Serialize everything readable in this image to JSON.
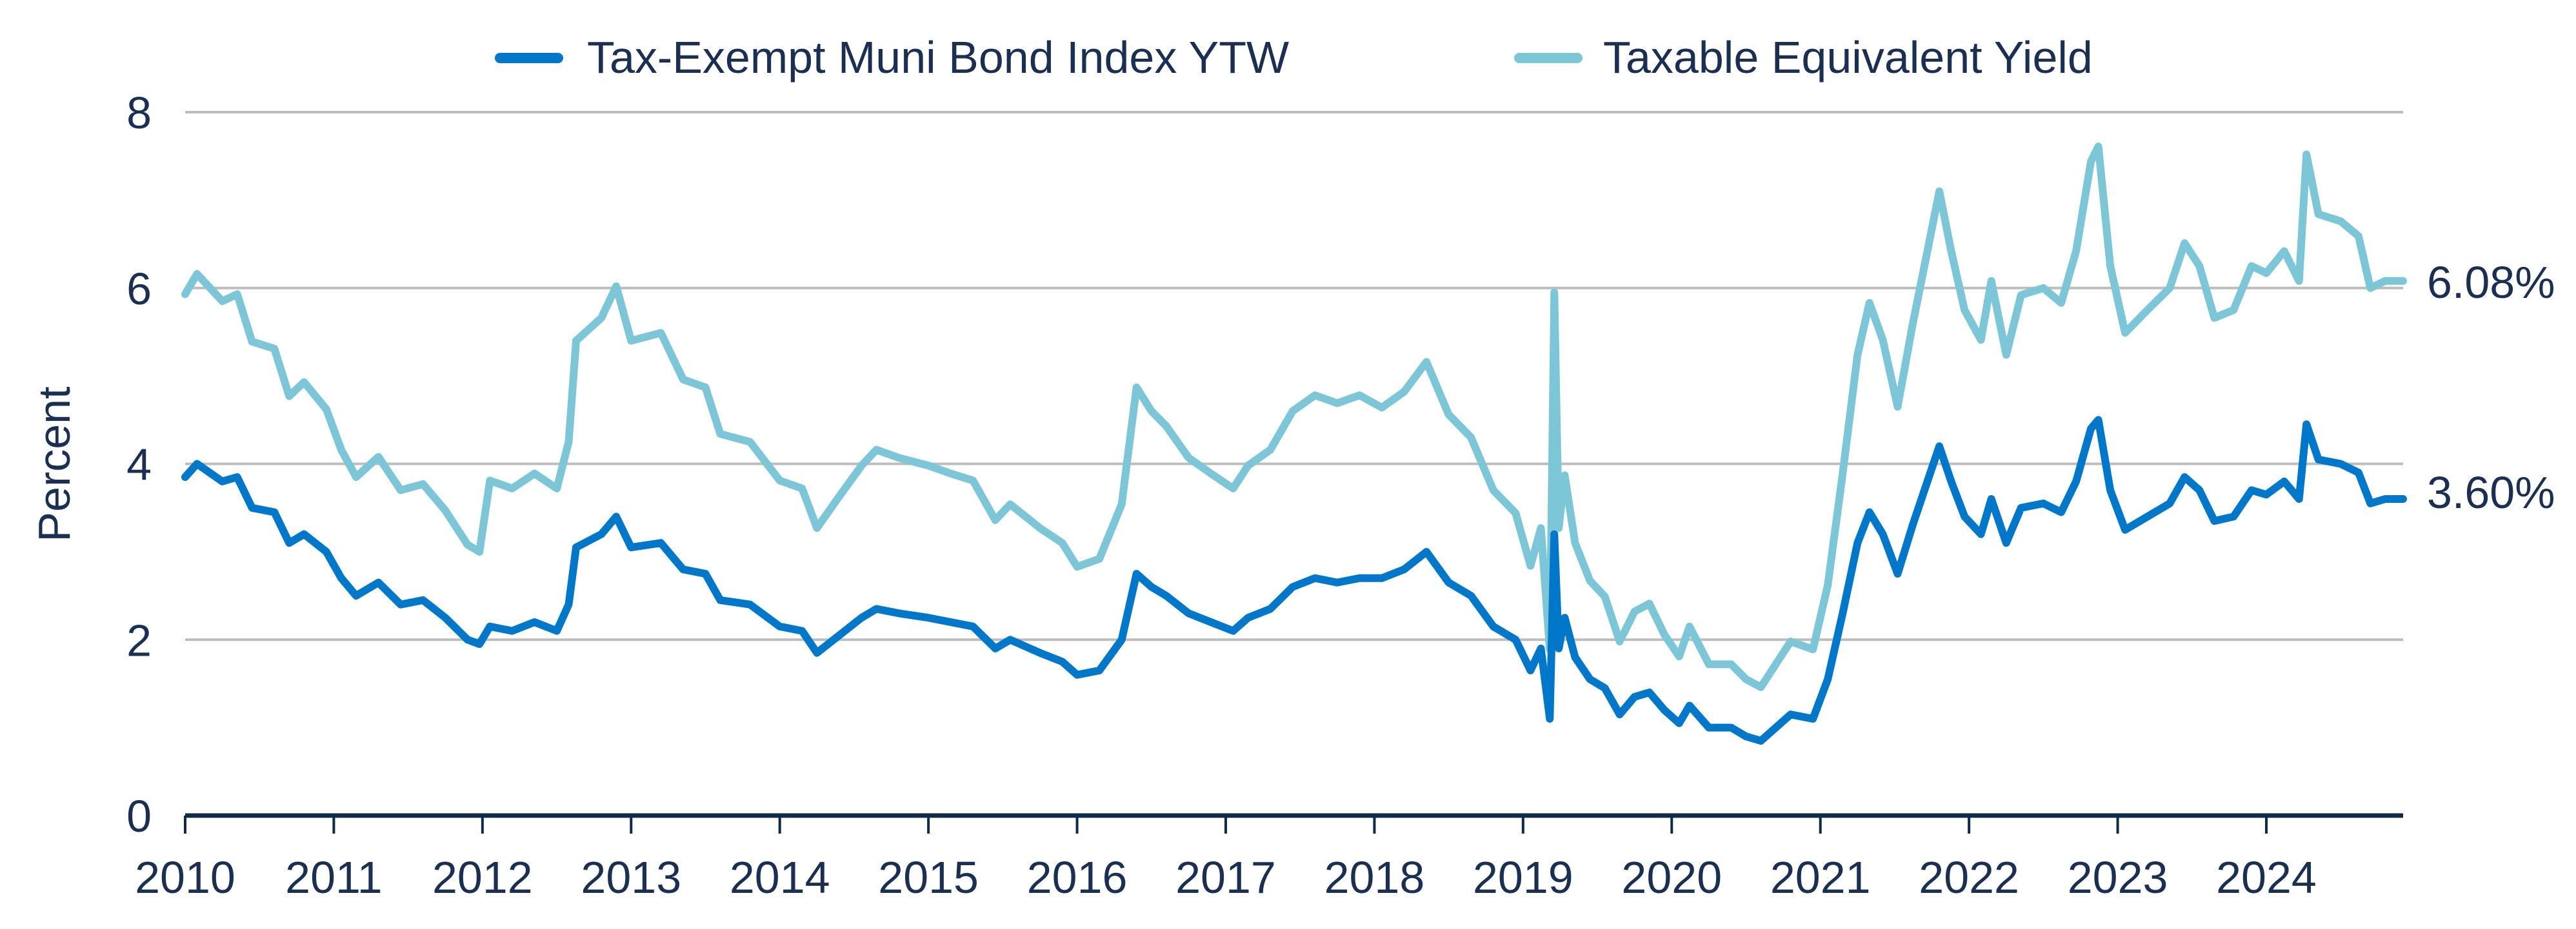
{
  "chart_data": {
    "type": "line",
    "title": "",
    "xlabel": "",
    "ylabel": "Percent",
    "xlim": [
      2010,
      2024.92
    ],
    "ylim": [
      0,
      8
    ],
    "yticks": [
      0,
      2,
      4,
      6,
      8
    ],
    "xticks": [
      2010,
      2011,
      2012,
      2013,
      2014,
      2015,
      2016,
      2017,
      2018,
      2019,
      2020,
      2021,
      2022,
      2023,
      2024
    ],
    "grid": "horizontal",
    "legend_position": "top",
    "colors": {
      "muni": "#0077C8",
      "tey": "#7DC6D8",
      "text": "#1B2F52",
      "axis": "#0E2A4A",
      "grid": "#BDBDBD"
    },
    "x": [
      2010.0,
      2010.08,
      2010.25,
      2010.35,
      2010.45,
      2010.6,
      2010.7,
      2010.8,
      2010.95,
      2011.05,
      2011.15,
      2011.3,
      2011.45,
      2011.6,
      2011.75,
      2011.9,
      2011.98,
      2012.05,
      2012.2,
      2012.35,
      2012.5,
      2012.58,
      2012.63,
      2012.8,
      2012.9,
      2013.0,
      2013.2,
      2013.35,
      2013.5,
      2013.6,
      2013.8,
      2014.0,
      2014.15,
      2014.25,
      2014.4,
      2014.55,
      2014.65,
      2014.8,
      2015.0,
      2015.15,
      2015.3,
      2015.45,
      2015.55,
      2015.75,
      2015.9,
      2016.0,
      2016.15,
      2016.3,
      2016.4,
      2016.5,
      2016.6,
      2016.75,
      2016.9,
      2017.05,
      2017.15,
      2017.3,
      2017.45,
      2017.6,
      2017.75,
      2017.9,
      2018.05,
      2018.2,
      2018.35,
      2018.5,
      2018.65,
      2018.8,
      2018.95,
      2019.05,
      2019.12,
      2019.18,
      2019.21,
      2019.24,
      2019.28,
      2019.35,
      2019.45,
      2019.55,
      2019.65,
      2019.75,
      2019.85,
      2019.95,
      2020.05,
      2020.12,
      2020.25,
      2020.4,
      2020.5,
      2020.6,
      2020.7,
      2020.8,
      2020.95,
      2021.05,
      2021.15,
      2021.25,
      2021.33,
      2021.42,
      2021.52,
      2021.62,
      2021.72,
      2021.8,
      2021.88,
      2021.97,
      2022.08,
      2022.15,
      2022.25,
      2022.35,
      2022.5,
      2022.62,
      2022.72,
      2022.82,
      2022.87,
      2022.95,
      2023.05,
      2023.2,
      2023.35,
      2023.45,
      2023.55,
      2023.65,
      2023.78,
      2023.9,
      2024.0,
      2024.12,
      2024.22,
      2024.27,
      2024.35,
      2024.5,
      2024.62,
      2024.7,
      2024.8,
      2024.92
    ],
    "series": [
      {
        "name": "Tax-Exempt Muni Bond Index YTW",
        "end_label": "3.60%",
        "values": [
          3.85,
          4.0,
          3.8,
          3.85,
          3.5,
          3.45,
          3.1,
          3.2,
          3.0,
          2.7,
          2.5,
          2.65,
          2.4,
          2.45,
          2.25,
          2.0,
          1.95,
          2.15,
          2.1,
          2.2,
          2.1,
          2.4,
          3.05,
          3.2,
          3.4,
          3.05,
          3.1,
          2.8,
          2.75,
          2.45,
          2.4,
          2.15,
          2.1,
          1.85,
          2.05,
          2.25,
          2.35,
          2.3,
          2.25,
          2.2,
          2.15,
          1.9,
          2.0,
          1.85,
          1.75,
          1.6,
          1.65,
          2.0,
          2.75,
          2.6,
          2.5,
          2.3,
          2.2,
          2.1,
          2.25,
          2.35,
          2.6,
          2.7,
          2.65,
          2.7,
          2.7,
          2.8,
          3.0,
          2.65,
          2.5,
          2.15,
          2.0,
          1.65,
          1.9,
          1.1,
          3.2,
          1.9,
          2.25,
          1.8,
          1.55,
          1.45,
          1.15,
          1.35,
          1.4,
          1.2,
          1.05,
          1.25,
          1.0,
          1.0,
          0.9,
          0.85,
          1.0,
          1.15,
          1.1,
          1.55,
          2.3,
          3.1,
          3.45,
          3.2,
          2.75,
          3.3,
          3.8,
          4.2,
          3.8,
          3.4,
          3.2,
          3.6,
          3.1,
          3.5,
          3.55,
          3.45,
          3.8,
          4.4,
          4.5,
          3.7,
          3.25,
          3.4,
          3.55,
          3.85,
          3.7,
          3.35,
          3.4,
          3.7,
          3.65,
          3.8,
          3.6,
          4.45,
          4.05,
          4.0,
          3.9,
          3.55,
          3.6,
          3.6
        ]
      },
      {
        "name": "Taxable Equivalent Yield",
        "end_label": "6.08%",
        "values": [
          5.93,
          6.16,
          5.85,
          5.93,
          5.39,
          5.31,
          4.77,
          4.93,
          4.62,
          4.16,
          3.85,
          4.08,
          3.7,
          3.77,
          3.47,
          3.08,
          3.0,
          3.81,
          3.72,
          3.89,
          3.72,
          4.25,
          5.4,
          5.66,
          6.02,
          5.4,
          5.49,
          4.96,
          4.87,
          4.34,
          4.25,
          3.81,
          3.72,
          3.27,
          3.63,
          3.98,
          4.16,
          4.07,
          3.98,
          3.89,
          3.81,
          3.36,
          3.54,
          3.27,
          3.1,
          2.83,
          2.92,
          3.54,
          4.87,
          4.6,
          4.43,
          4.07,
          3.89,
          3.72,
          3.98,
          4.16,
          4.6,
          4.78,
          4.69,
          4.78,
          4.64,
          4.82,
          5.16,
          4.56,
          4.3,
          3.7,
          3.44,
          2.84,
          3.27,
          1.89,
          5.95,
          3.27,
          3.87,
          3.1,
          2.67,
          2.49,
          1.98,
          2.32,
          2.41,
          2.06,
          1.81,
          2.15,
          1.72,
          1.72,
          1.55,
          1.46,
          1.72,
          1.98,
          1.89,
          2.62,
          3.89,
          5.24,
          5.83,
          5.41,
          4.65,
          5.58,
          6.42,
          7.1,
          6.42,
          5.75,
          5.41,
          6.08,
          5.24,
          5.92,
          6.0,
          5.83,
          6.42,
          7.44,
          7.61,
          6.25,
          5.49,
          5.75,
          6.0,
          6.51,
          6.25,
          5.66,
          5.75,
          6.25,
          6.17,
          6.42,
          6.08,
          7.52,
          6.84,
          6.76,
          6.59,
          6.0,
          6.08,
          6.08
        ]
      }
    ]
  }
}
